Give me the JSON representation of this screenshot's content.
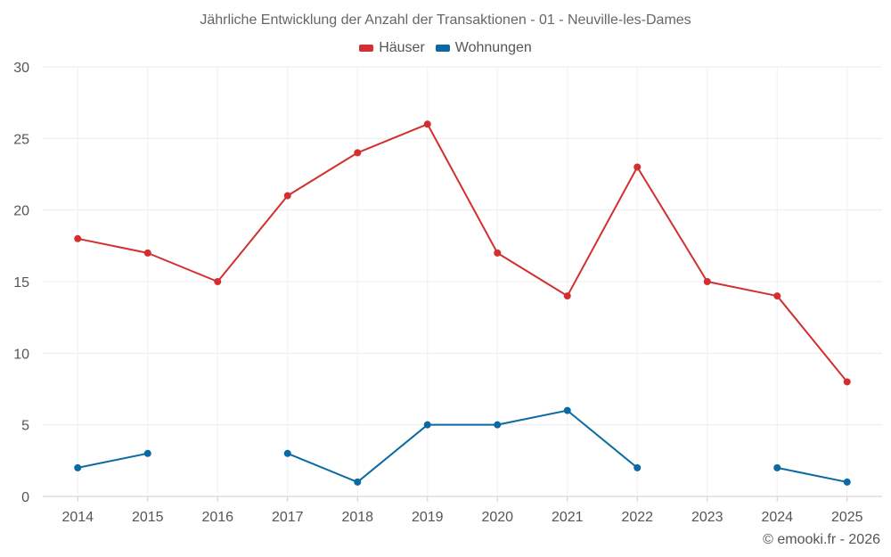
{
  "chart_data": {
    "type": "line",
    "title": "Jährliche Entwicklung der Anzahl der Transaktionen - 01 - Neuville-les-Dames",
    "xlabel": "",
    "ylabel": "",
    "ylim": [
      0,
      30
    ],
    "yticks": [
      "0",
      "5",
      "10",
      "15",
      "20",
      "25",
      "30"
    ],
    "categories": [
      "2014",
      "2015",
      "2016",
      "2017",
      "2018",
      "2019",
      "2020",
      "2021",
      "2022",
      "2023",
      "2024",
      "2025"
    ],
    "series": [
      {
        "name": "Häuser",
        "color": "#d32f2f",
        "values": [
          18,
          17,
          15,
          21,
          24,
          26,
          17,
          14,
          23,
          15,
          14,
          8
        ]
      },
      {
        "name": "Wohnungen",
        "color": "#0a6aa1",
        "values": [
          2,
          3,
          null,
          3,
          1,
          5,
          5,
          6,
          2,
          null,
          2,
          1
        ]
      }
    ],
    "grid": true,
    "legend_position": "top-center"
  },
  "credit": "© emooki.fr - 2026"
}
